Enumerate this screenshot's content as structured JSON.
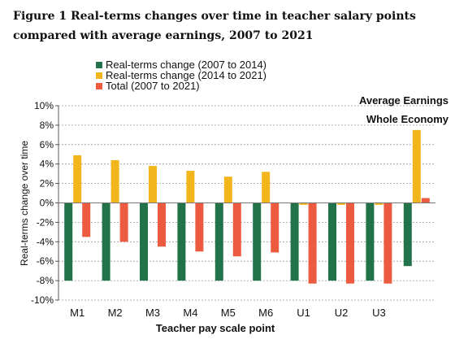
{
  "figure": {
    "title": "Figure 1 Real-terms changes over time in teacher salary points compared with average earnings, 2007 to 2021"
  },
  "chart_data": {
    "type": "bar",
    "categories": [
      "M1",
      "M2",
      "M3",
      "M4",
      "M5",
      "M6",
      "U1",
      "U2",
      "U3",
      ""
    ],
    "series": [
      {
        "name": "Real-terms change (2007 to 2014)",
        "color": "#23734a",
        "values": [
          -8.0,
          -8.0,
          -8.0,
          -8.0,
          -8.0,
          -8.0,
          -8.0,
          -8.0,
          -8.0,
          -6.5
        ]
      },
      {
        "name": "Real-terms change (2014 to 2021)",
        "color": "#f2b51c",
        "values": [
          4.9,
          4.4,
          3.8,
          3.3,
          2.7,
          3.2,
          -0.2,
          -0.2,
          -0.2,
          7.5
        ]
      },
      {
        "name": "Total (2007 to 2021)",
        "color": "#ec5b3f",
        "values": [
          -3.5,
          -4.0,
          -4.5,
          -5.0,
          -5.5,
          -5.1,
          -8.3,
          -8.3,
          -8.3,
          0.5
        ]
      }
    ],
    "annotations": [
      "Average Earnings",
      "Whole Economy"
    ],
    "xlabel": "Teacher pay scale point",
    "ylabel": "Real-terms change over time",
    "yticks": [
      "10%",
      "8%",
      "6%",
      "4%",
      "2%",
      "0%",
      "-2%",
      "-4%",
      "-6%",
      "-8%",
      "-10%"
    ],
    "ylim": [
      -10,
      10
    ],
    "grid": true,
    "legend_position": "top-center"
  }
}
